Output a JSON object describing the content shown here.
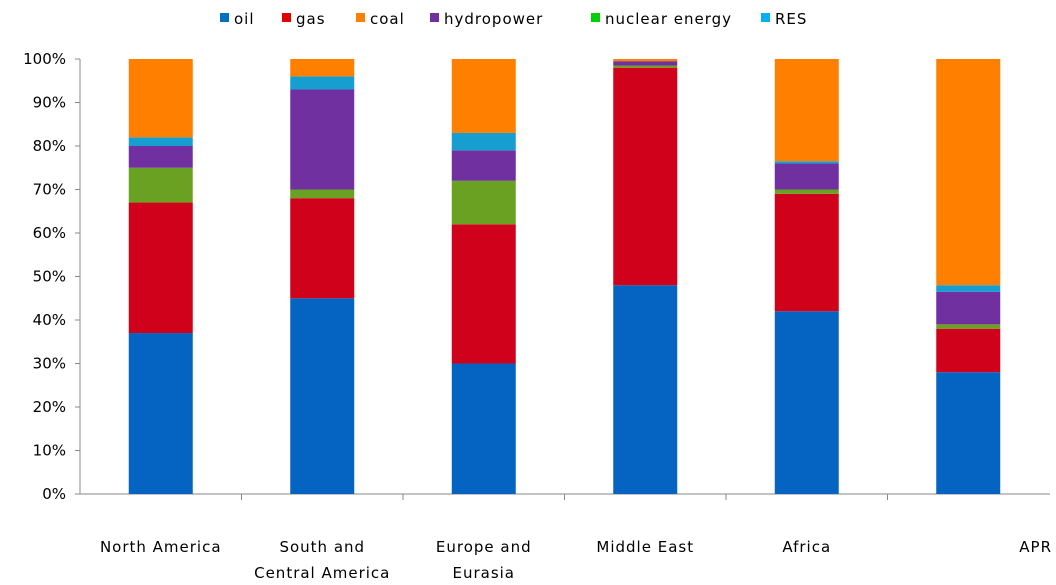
{
  "chart_data": {
    "type": "bar",
    "stacked": true,
    "percent": true,
    "categories": [
      [
        "North America"
      ],
      [
        "South and",
        "Central America"
      ],
      [
        "Europe and",
        "Eurasia"
      ],
      [
        "Middle East"
      ],
      [
        "Africa"
      ],
      [
        "APR"
      ]
    ],
    "series": [
      {
        "name": "oil",
        "color": "#0563C1",
        "values": [
          37,
          45,
          30,
          48,
          42,
          28
        ]
      },
      {
        "name": "gas",
        "color": "#D0021B",
        "values": [
          30,
          23,
          32,
          50,
          27,
          10
        ]
      },
      {
        "name": "nuclear energy",
        "color": "#6AA122",
        "values": [
          8,
          2,
          10,
          0.5,
          1,
          1
        ]
      },
      {
        "name": "hydropower",
        "color": "#7030A0",
        "values": [
          5,
          23,
          7,
          1,
          6,
          7.5
        ]
      },
      {
        "name": "RES",
        "color": "#159ECF",
        "values": [
          2,
          3,
          4,
          0,
          0.5,
          1.5
        ]
      },
      {
        "name": "coal",
        "color": "#FF8000",
        "values": [
          18,
          4,
          17,
          0.5,
          23.5,
          52
        ]
      }
    ],
    "legend": [
      {
        "name": "oil",
        "color": "#0070C0"
      },
      {
        "name": "gas",
        "color": "#E00000"
      },
      {
        "name": "coal",
        "color": "#FF8000"
      },
      {
        "name": "hydropower",
        "color": "#7030A0"
      },
      {
        "name": "nuclear energy",
        "color": "#00D000"
      },
      {
        "name": "RES",
        "color": "#00B0F0"
      }
    ],
    "legend_position": "top",
    "yticks": [
      "0%",
      "10%",
      "20%",
      "30%",
      "40%",
      "50%",
      "60%",
      "70%",
      "80%",
      "90%",
      "100%"
    ],
    "ylim": [
      0,
      100
    ],
    "grid": false
  }
}
